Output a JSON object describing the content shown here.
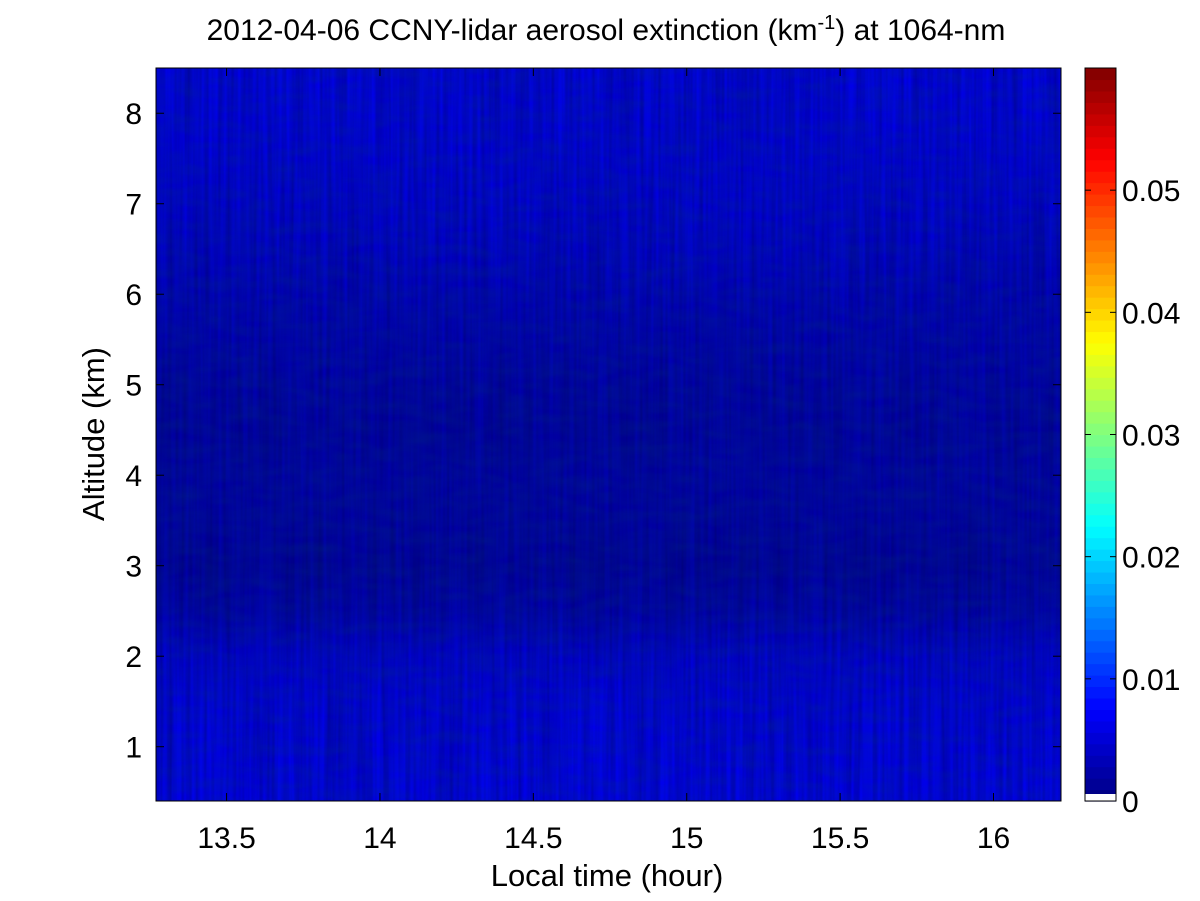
{
  "chart_data": {
    "type": "heatmap",
    "title": {
      "prefix": "2012-04-06 CCNY-lidar aerosol extinction (km",
      "superscript": "-1",
      "suffix": ") at 1064-nm"
    },
    "xlabel": "Local time (hour)",
    "ylabel": "Altitude (km)",
    "xlim": [
      13.27,
      16.22
    ],
    "ylim": [
      0.4,
      8.5
    ],
    "xticks": [
      13.5,
      14,
      14.5,
      15,
      15.5,
      16
    ],
    "xtick_labels": [
      "13.5",
      "14",
      "14.5",
      "15",
      "15.5",
      "16"
    ],
    "yticks": [
      1,
      2,
      3,
      4,
      5,
      6,
      7,
      8
    ],
    "ytick_labels": [
      "1",
      "2",
      "3",
      "4",
      "5",
      "6",
      "7",
      "8"
    ],
    "colorbar": {
      "colormap": "jet",
      "clim": [
        0,
        0.06
      ],
      "ticks": [
        0,
        0.01,
        0.02,
        0.03,
        0.04,
        0.05
      ],
      "tick_labels": [
        "0",
        "0.01",
        "0.02",
        "0.03",
        "0.04",
        "0.05"
      ]
    },
    "altitude_profile_km": [
      0.5,
      1.0,
      1.5,
      2.0,
      2.5,
      3.0,
      3.5,
      4.0,
      4.5,
      5.0,
      5.5,
      6.0,
      6.5,
      7.0,
      7.5,
      8.0,
      8.5
    ],
    "extinction_profile_km-1": [
      0.0065,
      0.0062,
      0.006,
      0.0052,
      0.003,
      0.0022,
      0.0026,
      0.0028,
      0.0025,
      0.0028,
      0.0034,
      0.004,
      0.0048,
      0.0054,
      0.0058,
      0.006,
      0.0062
    ],
    "grid": false
  }
}
